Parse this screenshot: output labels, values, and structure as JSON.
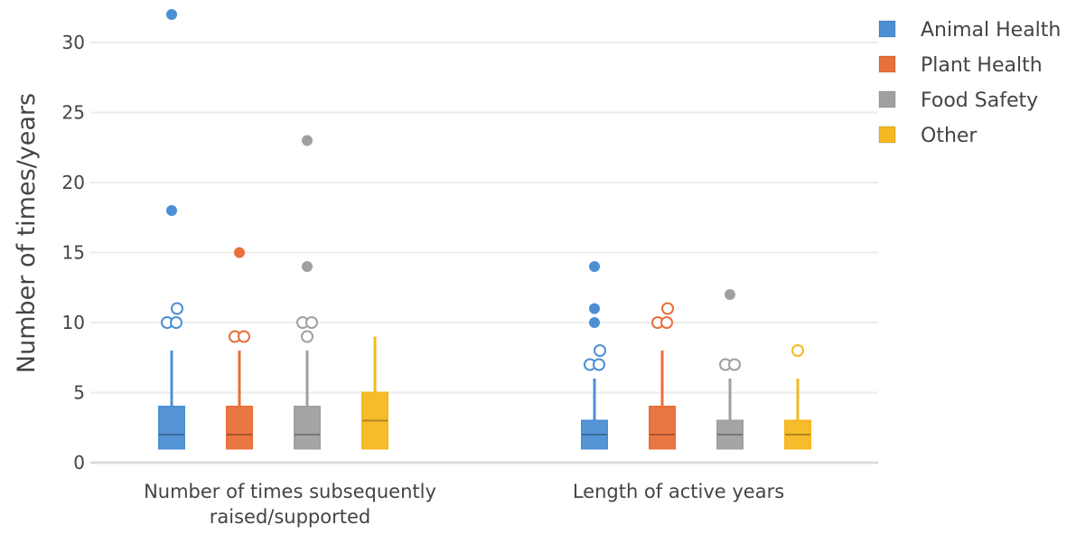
{
  "chart_data": {
    "type": "box",
    "ylabel": "Number of times/years",
    "ylim": [
      0,
      32
    ],
    "y_ticks": [
      0,
      5,
      10,
      15,
      20,
      25,
      30
    ],
    "grid": true,
    "legend_position": "top-right",
    "categories": [
      {
        "lines": [
          "Number of times subsequently",
          "raised/supported"
        ]
      },
      {
        "lines": [
          "Length of active years"
        ]
      }
    ],
    "series": [
      {
        "name": "Animal Health",
        "color": "#4c8fd4",
        "boxes": [
          {
            "min": 1,
            "q1": 1,
            "median": 2,
            "q3": 4,
            "max": 8,
            "outliers": [
              {
                "y": 32,
                "filled": true
              },
              {
                "y": 18,
                "filled": true
              },
              {
                "y": 11,
                "filled": false
              },
              {
                "y": 10,
                "filled": false
              },
              {
                "y": 10,
                "filled": false
              }
            ]
          },
          {
            "min": 1,
            "q1": 1,
            "median": 2,
            "q3": 3,
            "max": 6,
            "outliers": [
              {
                "y": 14,
                "filled": true
              },
              {
                "y": 11,
                "filled": true
              },
              {
                "y": 10,
                "filled": true
              },
              {
                "y": 8,
                "filled": false
              },
              {
                "y": 7,
                "filled": false
              },
              {
                "y": 7,
                "filled": false
              }
            ]
          }
        ]
      },
      {
        "name": "Plant Health",
        "color": "#e8703a",
        "boxes": [
          {
            "min": 1,
            "q1": 1,
            "median": 2,
            "q3": 4,
            "max": 8,
            "outliers": [
              {
                "y": 15,
                "filled": true
              },
              {
                "y": 9,
                "filled": false
              },
              {
                "y": 9,
                "filled": false
              }
            ]
          },
          {
            "min": 1,
            "q1": 1,
            "median": 2,
            "q3": 4,
            "max": 8,
            "outliers": [
              {
                "y": 11,
                "filled": false
              },
              {
                "y": 10,
                "filled": false
              },
              {
                "y": 10,
                "filled": false
              }
            ]
          }
        ]
      },
      {
        "name": "Food Safety",
        "color": "#a0a0a0",
        "boxes": [
          {
            "min": 1,
            "q1": 1,
            "median": 2,
            "q3": 4,
            "max": 8,
            "outliers": [
              {
                "y": 23,
                "filled": true
              },
              {
                "y": 14,
                "filled": true
              },
              {
                "y": 10,
                "filled": false
              },
              {
                "y": 10,
                "filled": false
              },
              {
                "y": 9,
                "filled": false
              }
            ]
          },
          {
            "min": 1,
            "q1": 1,
            "median": 2,
            "q3": 3,
            "max": 6,
            "outliers": [
              {
                "y": 12,
                "filled": true
              },
              {
                "y": 7,
                "filled": false
              },
              {
                "y": 7,
                "filled": false
              }
            ]
          }
        ]
      },
      {
        "name": "Other",
        "color": "#f5b820",
        "boxes": [
          {
            "min": 1,
            "q1": 1,
            "median": 3,
            "q3": 5,
            "max": 9,
            "outliers": []
          },
          {
            "min": 1,
            "q1": 1,
            "median": 2,
            "q3": 3,
            "max": 6,
            "outliers": [
              {
                "y": 8,
                "filled": false
              }
            ]
          }
        ]
      }
    ]
  }
}
